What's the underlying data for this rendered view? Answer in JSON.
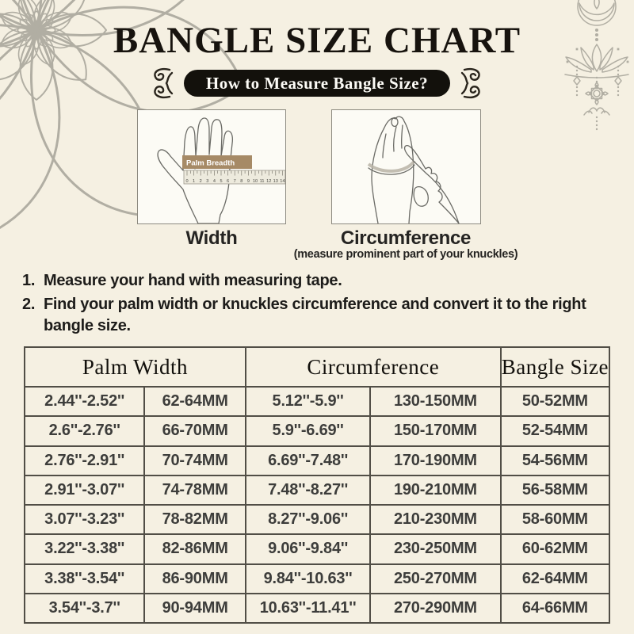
{
  "title": "BANGLE SIZE CHART",
  "badge": {
    "label": "How to Measure Bangle Size?"
  },
  "diagrams": {
    "width": {
      "caption": "Width",
      "tag": "Palm Breadth",
      "ruler_numbers": [
        "0",
        "1",
        "2",
        "3",
        "4",
        "5",
        "6",
        "7",
        "8",
        "9",
        "10",
        "11",
        "12",
        "13",
        "14"
      ]
    },
    "circumference": {
      "caption": "Circumference",
      "note": "(measure prominent part of your knuckles)"
    }
  },
  "instructions": [
    {
      "num": "1.",
      "text": "Measure your hand with measuring tape."
    },
    {
      "num": "2.",
      "text": "Find your palm width or knuckles circumference and convert it to the right bangle size."
    }
  ],
  "table": {
    "headers": [
      "Palm Width",
      "Circumference",
      "Bangle Size"
    ],
    "rows": [
      [
        "2.44''-2.52''",
        "62-64MM",
        "5.12''-5.9''",
        "130-150MM",
        "50-52MM"
      ],
      [
        "2.6''-2.76''",
        "66-70MM",
        "5.9''-6.69''",
        "150-170MM",
        "52-54MM"
      ],
      [
        "2.76''-2.91''",
        "70-74MM",
        "6.69''-7.48''",
        "170-190MM",
        "54-56MM"
      ],
      [
        "2.91''-3.07''",
        "74-78MM",
        "7.48''-8.27''",
        "190-210MM",
        "56-58MM"
      ],
      [
        "3.07''-3.23''",
        "78-82MM",
        "8.27''-9.06''",
        "210-230MM",
        "58-60MM"
      ],
      [
        "3.22''-3.38''",
        "82-86MM",
        "9.06''-9.84''",
        "230-250MM",
        "60-62MM"
      ],
      [
        "3.38''-3.54''",
        "86-90MM",
        "9.84''-10.63''",
        "250-270MM",
        "62-64MM"
      ],
      [
        "3.54''-3.7''",
        "90-94MM",
        "10.63''-11.41''",
        "270-290MM",
        "64-66MM"
      ]
    ]
  },
  "colors": {
    "background": "#f5f0e2",
    "ink": "#17130e",
    "badge_bg": "#13110c",
    "badge_text": "#fdfcf7",
    "table_border": "#514e46",
    "cell_text": "#3d3d3b",
    "decoration": "#b1aea3",
    "tag_bg": "#a68a66"
  }
}
